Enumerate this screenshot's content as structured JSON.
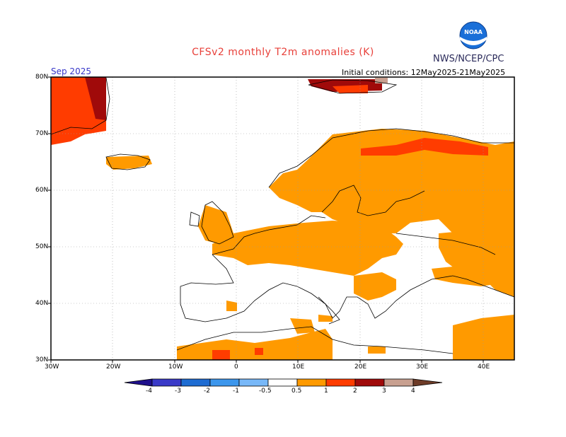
{
  "header": {
    "title": "CFSv2 monthly T2m anomalies (K)",
    "org": "NWS/NCEP/CPC",
    "valid_month": "Sep 2025",
    "initial_conditions": "Initial conditions: 12May2025-21May2025",
    "logo_text": "NOAA"
  },
  "axes": {
    "lat_labels": [
      "80N",
      "70N",
      "60N",
      "50N",
      "40N",
      "30N"
    ],
    "lon_labels": [
      "30W",
      "20W",
      "10W",
      "0",
      "10E",
      "20E",
      "30E",
      "40E"
    ],
    "lon_range": [
      -30,
      45
    ],
    "lat_range": [
      30,
      80
    ],
    "grid": "dotted"
  },
  "colorbar": {
    "labels": [
      "-4",
      "-3",
      "-2",
      "-1",
      "-0.5",
      "0.5",
      "1",
      "2",
      "3",
      "4"
    ],
    "colors": [
      "#1e0f8c",
      "#3a3ac8",
      "#1e6cd2",
      "#3c96ec",
      "#78b8f8",
      "#ffffff",
      "#ff9a00",
      "#ff3c00",
      "#a00a0a",
      "#c8a090",
      "#6e3c28"
    ]
  },
  "legend_meaning": {
    "orange": "0.5 to 1",
    "red_orange": "1 to 2",
    "dark_red": "2 to 3",
    "rose": "3 to 4"
  }
}
